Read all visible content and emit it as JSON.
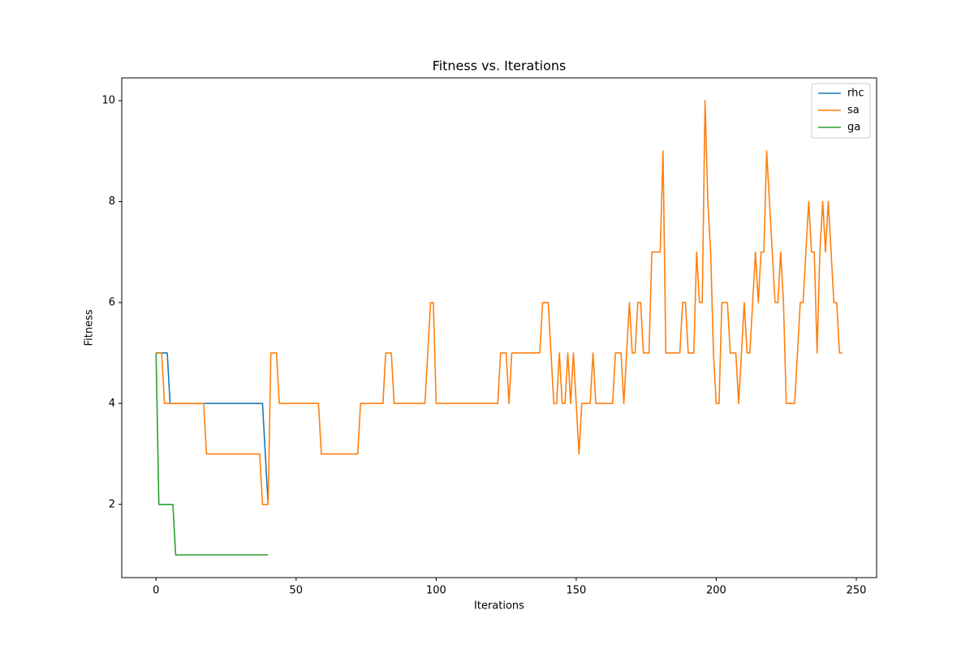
{
  "chart_data": {
    "type": "line",
    "title": "Fitness vs. Iterations",
    "x_label": "Iterations",
    "y_label": "Fitness",
    "xlim": [
      -12.25,
      257.25
    ],
    "ylim": [
      0.55,
      10.45
    ],
    "xticks": [
      0,
      50,
      100,
      150,
      200,
      250
    ],
    "yticks": [
      2,
      4,
      6,
      8,
      10
    ],
    "legend": "upper right",
    "grid": false,
    "series": [
      {
        "name": "rhc",
        "color": "#1f77b4",
        "x": [
          0,
          1,
          2,
          3,
          4,
          5,
          6,
          7,
          8,
          9,
          10,
          11,
          12,
          13,
          14,
          15,
          16,
          17,
          18,
          19,
          20,
          21,
          22,
          23,
          24,
          25,
          26,
          27,
          28,
          29,
          30,
          31,
          32,
          33,
          34,
          35,
          36,
          37,
          38,
          39,
          40
        ],
        "values": [
          5,
          5,
          5,
          5,
          5,
          4,
          4,
          4,
          4,
          4,
          4,
          4,
          4,
          4,
          4,
          4,
          4,
          4,
          4,
          4,
          4,
          4,
          4,
          4,
          4,
          4,
          4,
          4,
          4,
          4,
          4,
          4,
          4,
          4,
          4,
          4,
          4,
          4,
          4,
          3,
          2
        ]
      },
      {
        "name": "sa",
        "color": "#ff7f0e",
        "x": [
          0,
          1,
          2,
          3,
          4,
          5,
          6,
          7,
          8,
          9,
          10,
          11,
          12,
          13,
          14,
          15,
          16,
          17,
          18,
          19,
          20,
          21,
          22,
          23,
          24,
          25,
          26,
          27,
          28,
          29,
          30,
          31,
          32,
          33,
          34,
          35,
          36,
          37,
          38,
          39,
          40,
          41,
          42,
          43,
          44,
          45,
          46,
          47,
          48,
          49,
          50,
          51,
          52,
          53,
          54,
          55,
          56,
          57,
          58,
          59,
          60,
          61,
          62,
          63,
          64,
          65,
          66,
          67,
          68,
          69,
          70,
          71,
          72,
          73,
          74,
          75,
          76,
          77,
          78,
          79,
          80,
          81,
          82,
          83,
          84,
          85,
          86,
          87,
          88,
          89,
          90,
          91,
          92,
          93,
          94,
          95,
          96,
          97,
          98,
          99,
          100,
          101,
          102,
          103,
          104,
          105,
          106,
          107,
          108,
          109,
          110,
          111,
          112,
          113,
          114,
          115,
          116,
          117,
          118,
          119,
          120,
          121,
          122,
          123,
          124,
          125,
          126,
          127,
          128,
          129,
          130,
          131,
          132,
          133,
          134,
          135,
          136,
          137,
          138,
          139,
          140,
          141,
          142,
          143,
          144,
          145,
          146,
          147,
          148,
          149,
          150,
          151,
          152,
          153,
          154,
          155,
          156,
          157,
          158,
          159,
          160,
          161,
          162,
          163,
          164,
          165,
          166,
          167,
          168,
          169,
          170,
          171,
          172,
          173,
          174,
          175,
          176,
          177,
          178,
          179,
          180,
          181,
          182,
          183,
          184,
          185,
          186,
          187,
          188,
          189,
          190,
          191,
          192,
          193,
          194,
          195,
          196,
          197,
          198,
          199,
          200,
          201,
          202,
          203,
          204,
          205,
          206,
          207,
          208,
          209,
          210,
          211,
          212,
          213,
          214,
          215,
          216,
          217,
          218,
          219,
          220,
          221,
          222,
          223,
          224,
          225,
          226,
          227,
          228,
          229,
          230,
          231,
          232,
          233,
          234,
          235,
          236,
          237,
          238,
          239,
          240,
          241,
          242,
          243,
          244,
          245
        ],
        "values": [
          5,
          5,
          5,
          4,
          4,
          4,
          4,
          4,
          4,
          4,
          4,
          4,
          4,
          4,
          4,
          4,
          4,
          4,
          3,
          3,
          3,
          3,
          3,
          3,
          3,
          3,
          3,
          3,
          3,
          3,
          3,
          3,
          3,
          3,
          3,
          3,
          3,
          3,
          2,
          2,
          2,
          5,
          5,
          5,
          4,
          4,
          4,
          4,
          4,
          4,
          4,
          4,
          4,
          4,
          4,
          4,
          4,
          4,
          4,
          3,
          3,
          3,
          3,
          3,
          3,
          3,
          3,
          3,
          3,
          3,
          3,
          3,
          3,
          4,
          4,
          4,
          4,
          4,
          4,
          4,
          4,
          4,
          5,
          5,
          5,
          4,
          4,
          4,
          4,
          4,
          4,
          4,
          4,
          4,
          4,
          4,
          4,
          5,
          6,
          6,
          4,
          4,
          4,
          4,
          4,
          4,
          4,
          4,
          4,
          4,
          4,
          4,
          4,
          4,
          4,
          4,
          4,
          4,
          4,
          4,
          4,
          4,
          4,
          5,
          5,
          5,
          4,
          5,
          5,
          5,
          5,
          5,
          5,
          5,
          5,
          5,
          5,
          5,
          6,
          6,
          6,
          5,
          4,
          4,
          5,
          4,
          4,
          5,
          4,
          5,
          4,
          3,
          4,
          4,
          4,
          4,
          5,
          4,
          4,
          4,
          4,
          4,
          4,
          4,
          5,
          5,
          5,
          4,
          5,
          6,
          5,
          5,
          6,
          6,
          5,
          5,
          5,
          7,
          7,
          7,
          7,
          9,
          5,
          5,
          5,
          5,
          5,
          5,
          6,
          6,
          5,
          5,
          5,
          7,
          6,
          6,
          10,
          8,
          7,
          5,
          4,
          4,
          6,
          6,
          6,
          5,
          5,
          5,
          4,
          5,
          6,
          5,
          5,
          6,
          7,
          6,
          7,
          7,
          9,
          8,
          7,
          6,
          6,
          7,
          6,
          4,
          4,
          4,
          4,
          5,
          6,
          6,
          7,
          8,
          7,
          7,
          5,
          7,
          8,
          7,
          8,
          7,
          6,
          6,
          5,
          5
        ]
      },
      {
        "name": "ga",
        "color": "#2ca02c",
        "x": [
          0,
          1,
          2,
          3,
          4,
          5,
          6,
          7,
          8,
          9,
          10,
          11,
          12,
          13,
          14,
          15,
          16,
          17,
          18,
          19,
          20,
          21,
          22,
          23,
          24,
          25,
          26,
          27,
          28,
          29,
          30,
          31,
          32,
          33,
          34,
          35,
          36,
          37,
          38,
          39,
          40
        ],
        "values": [
          5,
          2,
          2,
          2,
          2,
          2,
          2,
          1,
          1,
          1,
          1,
          1,
          1,
          1,
          1,
          1,
          1,
          1,
          1,
          1,
          1,
          1,
          1,
          1,
          1,
          1,
          1,
          1,
          1,
          1,
          1,
          1,
          1,
          1,
          1,
          1,
          1,
          1,
          1,
          1,
          1
        ]
      }
    ]
  }
}
